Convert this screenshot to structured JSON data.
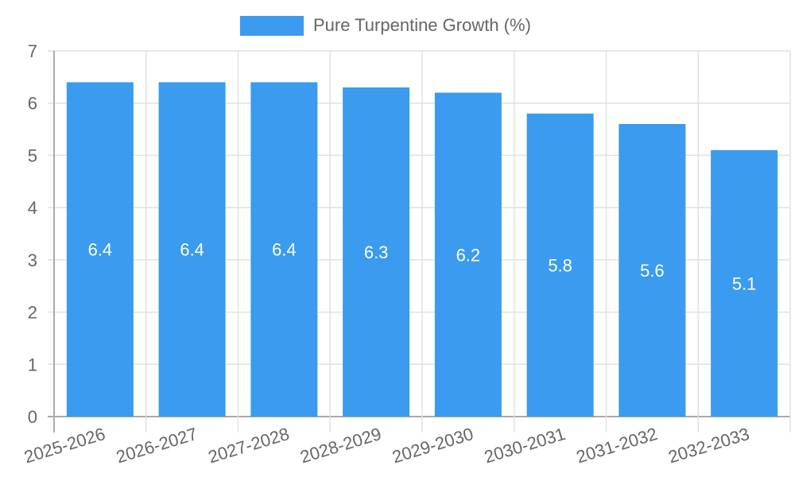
{
  "chart_data": {
    "type": "bar",
    "title": "",
    "categories": [
      "2025-2026",
      "2026-2027",
      "2027-2028",
      "2028-2029",
      "2029-2030",
      "2030-2031",
      "2031-2032",
      "2032-2033"
    ],
    "series": [
      {
        "name": "Pure Turpentine Growth (%)",
        "values": [
          6.4,
          6.4,
          6.4,
          6.3,
          6.2,
          5.8,
          5.6,
          5.1
        ],
        "color": "#3a9bef"
      }
    ],
    "data_labels": [
      "6.4",
      "6.4",
      "6.4",
      "6.3",
      "6.2",
      "5.8",
      "5.6",
      "5.1"
    ],
    "xlabel": "",
    "ylabel": "",
    "ylim": [
      0,
      7
    ],
    "yticks": [
      0,
      1,
      2,
      3,
      4,
      5,
      6,
      7
    ],
    "grid": true,
    "legend_position": "top"
  },
  "legend": {
    "label": "Pure Turpentine Growth (%)",
    "color": "#3a9bef"
  }
}
